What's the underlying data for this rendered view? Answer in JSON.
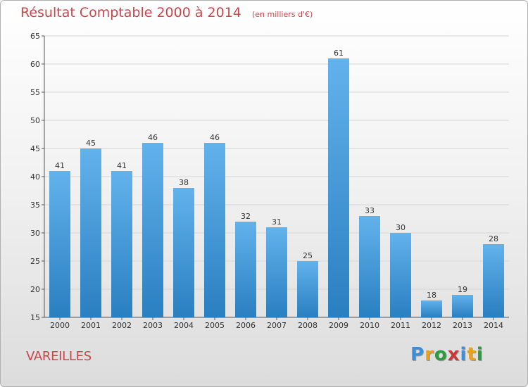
{
  "title": "Résultat Comptable 2000 à 2014",
  "unit_label": "(en milliers d'€)",
  "commune": "VAREILLES",
  "logo": {
    "text": "Proxiti",
    "letters": [
      "P",
      "r",
      "o",
      "x",
      "i",
      "t",
      "i"
    ],
    "colors": [
      "#3a8fd8",
      "#e8a21a",
      "#2f9a3e",
      "#c83a3a",
      "#3a8fd8",
      "#e8a21a",
      "#2f9a3e"
    ]
  },
  "colors": {
    "bar_top": "#62b2ec",
    "bar_bottom": "#2a7fc0",
    "title": "#c8474b"
  },
  "chart_data": {
    "type": "bar",
    "title": "Résultat Comptable 2000 à 2014",
    "ylabel": "en milliers d'€",
    "xlabel": "",
    "categories": [
      "2000",
      "2001",
      "2002",
      "2003",
      "2004",
      "2005",
      "2006",
      "2007",
      "2008",
      "2009",
      "2010",
      "2011",
      "2012",
      "2013",
      "2014"
    ],
    "values": [
      41,
      45,
      41,
      46,
      38,
      46,
      32,
      31,
      25,
      61,
      33,
      30,
      18,
      19,
      28
    ],
    "ylim": [
      15,
      65
    ],
    "yticks": [
      15,
      20,
      25,
      30,
      35,
      40,
      45,
      50,
      55,
      60,
      65
    ],
    "grid": true
  }
}
